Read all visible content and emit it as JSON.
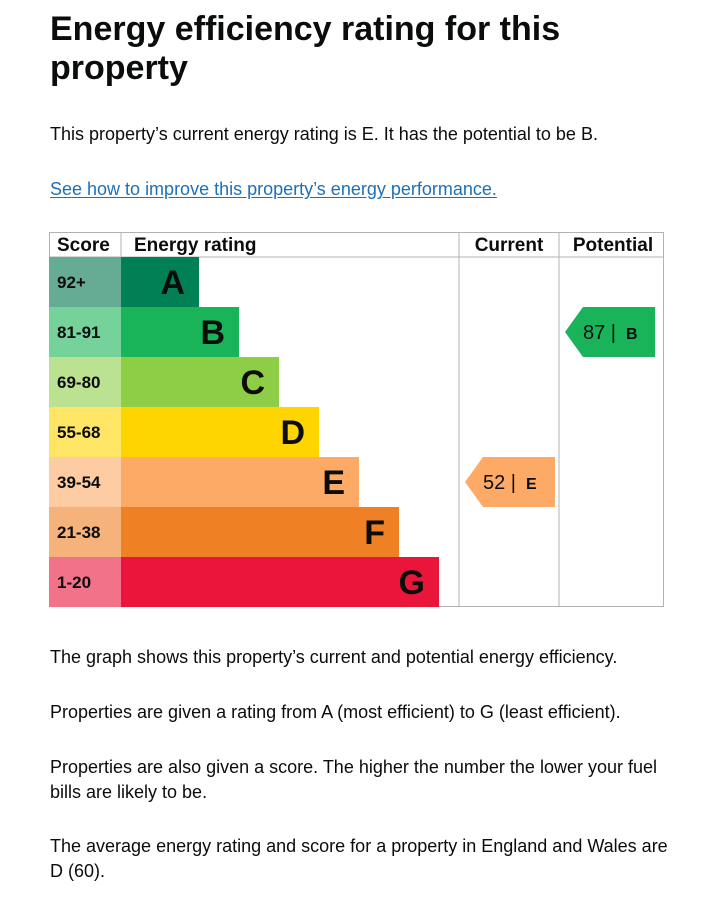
{
  "page": {
    "title": "Energy efficiency rating for this property",
    "intro": "This property’s current energy rating is E. It has the potential to be B.",
    "improve_link": "See how to improve this property’s energy performance.",
    "para_graph": "The graph shows this property’s current and potential energy efficiency.",
    "para_rating": "Properties are given a rating from A (most efficient) to G (least efficient).",
    "para_score": "Properties are also given a score. The higher the number the lower your fuel bills are likely to be.",
    "para_average": "The average energy rating and score for a property in England and Wales are D (60)."
  },
  "chart_data": {
    "type": "table",
    "columns": [
      "Score",
      "Energy rating",
      "Current",
      "Potential"
    ],
    "bands": [
      {
        "range": "92+",
        "letter": "A",
        "color": "#008054",
        "score_bg": "#66ab94",
        "letter_color": "#0b0c0c"
      },
      {
        "range": "81-91",
        "letter": "B",
        "color": "#19b459",
        "score_bg": "#75d29b",
        "letter_color": "#0b0c0c"
      },
      {
        "range": "69-80",
        "letter": "C",
        "color": "#8dce46",
        "score_bg": "#bbe290",
        "letter_color": "#0b0c0c"
      },
      {
        "range": "55-68",
        "letter": "D",
        "color": "#ffd500",
        "score_bg": "#ffe566",
        "letter_color": "#0b0c0c"
      },
      {
        "range": "39-54",
        "letter": "E",
        "color": "#fcaa65",
        "score_bg": "#fdcca3",
        "letter_color": "#0b0c0c"
      },
      {
        "range": "21-38",
        "letter": "F",
        "color": "#ef8023",
        "score_bg": "#f5b37b",
        "letter_color": "#0b0c0c"
      },
      {
        "range": "1-20",
        "letter": "G",
        "color": "#e9153b",
        "score_bg": "#f27389",
        "letter_color": "#0b0c0c"
      }
    ],
    "current": {
      "score": 52,
      "letter": "E",
      "color": "#fcaa65"
    },
    "potential": {
      "score": 87,
      "letter": "B",
      "color": "#19b459"
    }
  }
}
